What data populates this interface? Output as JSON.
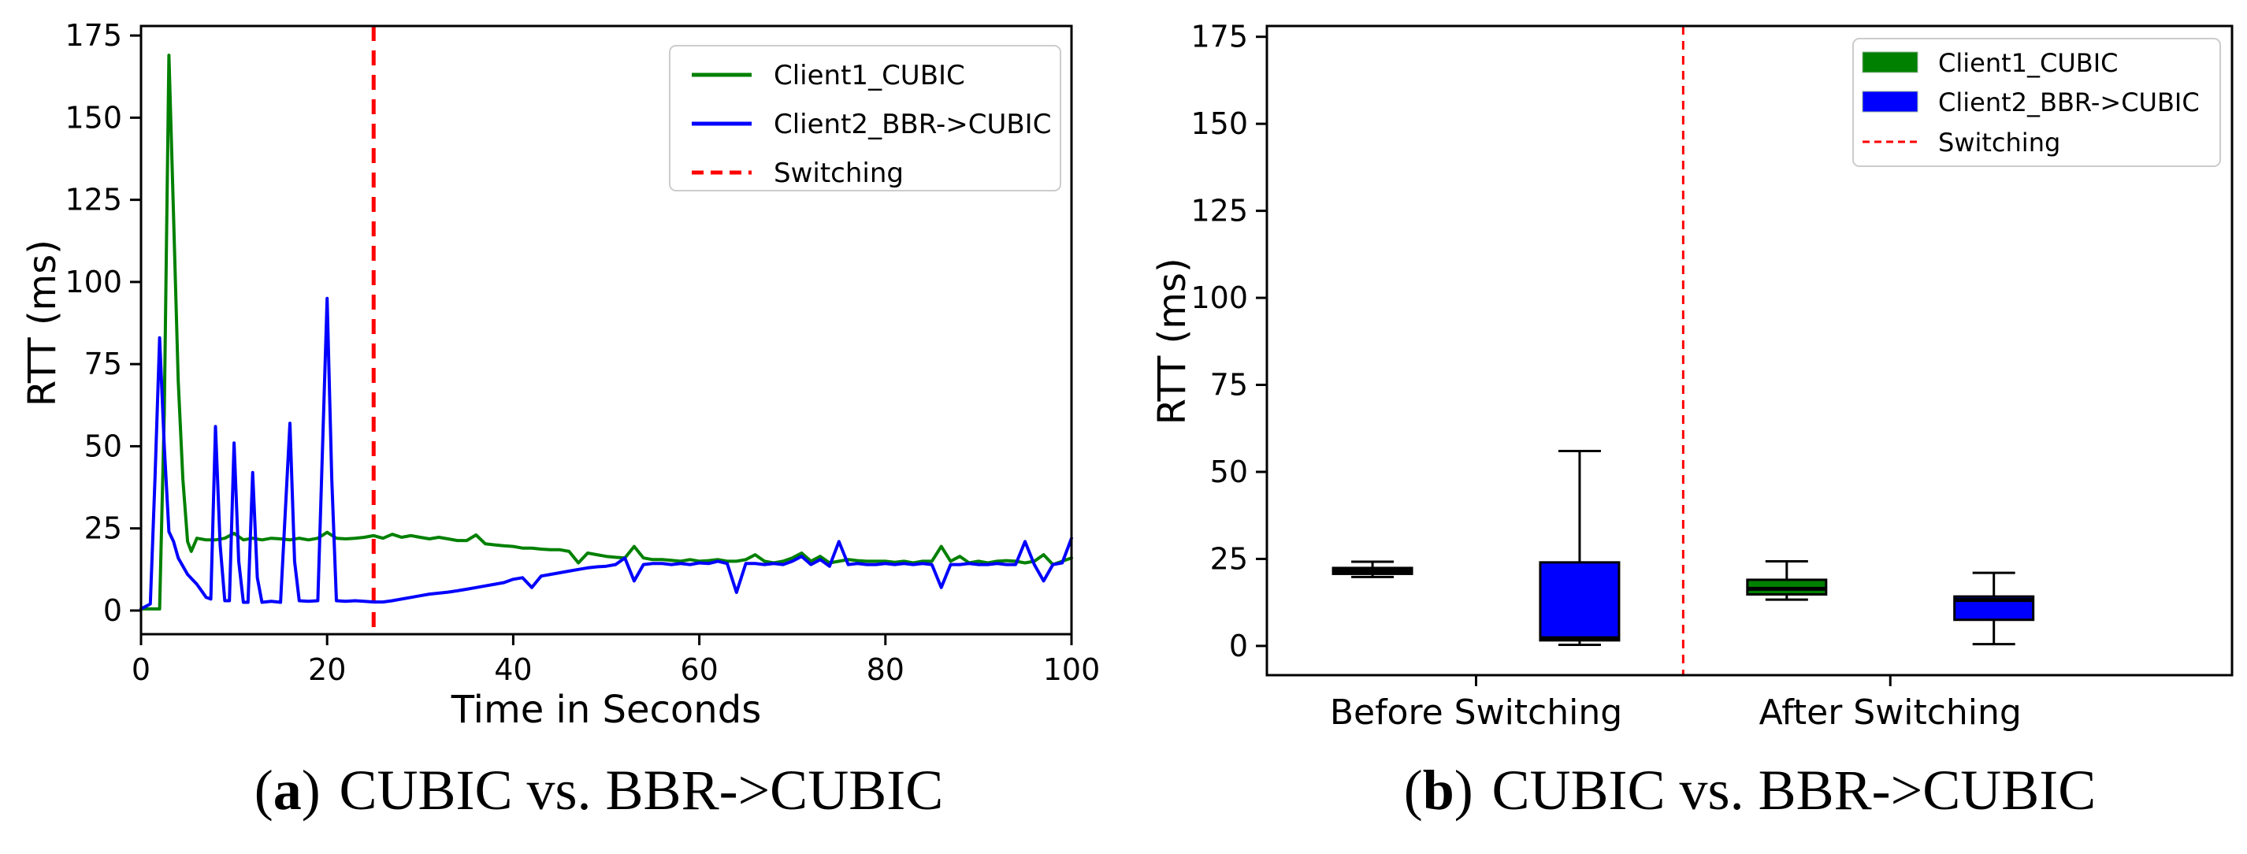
{
  "figure": {
    "background": "#ffffff",
    "accent_colors": {
      "cubic_green": "#008000",
      "bbr_blue": "#0000ff",
      "switch_red": "#ff0000"
    }
  },
  "captions": {
    "a": {
      "prefix": "(",
      "letter": "a",
      "suffix": ")",
      "text": "CUBIC vs. BBR->CUBIC"
    },
    "b": {
      "prefix": "(",
      "letter": "b",
      "suffix": ")",
      "text": "CUBIC vs. BBR->CUBIC"
    }
  },
  "chart_data": [
    {
      "id": "a",
      "type": "line",
      "title": "",
      "xlabel": "Time in Seconds",
      "ylabel": "RTT (ms)",
      "xlim": [
        0,
        100
      ],
      "ylim": [
        -7.2,
        177.9
      ],
      "xticks": [
        0,
        20,
        40,
        60,
        80,
        100
      ],
      "yticks": [
        0,
        25,
        50,
        75,
        100,
        125,
        150,
        175
      ],
      "grid": false,
      "legend_position": "upper right",
      "legend": [
        {
          "label": "Client1_CUBIC",
          "color": "#008000",
          "marker": "line"
        },
        {
          "label": "Client2_BBR->CUBIC",
          "color": "#0000ff",
          "marker": "line"
        },
        {
          "label": "Switching",
          "color": "#ff0000",
          "marker": "dashed"
        }
      ],
      "switching_x": 25,
      "series": [
        {
          "name": "Client1_CUBIC",
          "color": "#008000",
          "points": [
            [
              0,
              0.5
            ],
            [
              1,
              0.5
            ],
            [
              2,
              0.5
            ],
            [
              2.5,
              60
            ],
            [
              3,
              169
            ],
            [
              3.5,
              120
            ],
            [
              4,
              70
            ],
            [
              4.5,
              40
            ],
            [
              5,
              21
            ],
            [
              5.4,
              18
            ],
            [
              6,
              22
            ],
            [
              7,
              21.5
            ],
            [
              8,
              21.5
            ],
            [
              9,
              22
            ],
            [
              10,
              23.5
            ],
            [
              11,
              21.5
            ],
            [
              12,
              22
            ],
            [
              13,
              21.5
            ],
            [
              14,
              22
            ],
            [
              15,
              21.8
            ],
            [
              16,
              21.5
            ],
            [
              17,
              22
            ],
            [
              18,
              21.5
            ],
            [
              19,
              22
            ],
            [
              20,
              23.8
            ],
            [
              21,
              22
            ],
            [
              22,
              21.8
            ],
            [
              23,
              22
            ],
            [
              24,
              22.3
            ],
            [
              25,
              22.8
            ],
            [
              26,
              22
            ],
            [
              27,
              23.2
            ],
            [
              28,
              22.3
            ],
            [
              29,
              22.8
            ],
            [
              30,
              22.3
            ],
            [
              31,
              21.8
            ],
            [
              32,
              22.3
            ],
            [
              33,
              21.8
            ],
            [
              34,
              21.3
            ],
            [
              35,
              21.3
            ],
            [
              36,
              23
            ],
            [
              37,
              20.3
            ],
            [
              38,
              20
            ],
            [
              39,
              19.7
            ],
            [
              40,
              19.5
            ],
            [
              41,
              19
            ],
            [
              42,
              19
            ],
            [
              43,
              18.7
            ],
            [
              44,
              18.5
            ],
            [
              45,
              18.5
            ],
            [
              46,
              18
            ],
            [
              47,
              14.5
            ],
            [
              48,
              17.5
            ],
            [
              49,
              17
            ],
            [
              50,
              16.5
            ],
            [
              51,
              16.2
            ],
            [
              52,
              16
            ],
            [
              53,
              19.5
            ],
            [
              54,
              16
            ],
            [
              55,
              15.5
            ],
            [
              56,
              15.5
            ],
            [
              57,
              15.3
            ],
            [
              58,
              15
            ],
            [
              59,
              15.5
            ],
            [
              60,
              15
            ],
            [
              61,
              15.2
            ],
            [
              62,
              15.5
            ],
            [
              63,
              15
            ],
            [
              64,
              15
            ],
            [
              65,
              15.5
            ],
            [
              66,
              17
            ],
            [
              67,
              15
            ],
            [
              68,
              14.5
            ],
            [
              69,
              15
            ],
            [
              70,
              16
            ],
            [
              71,
              17.5
            ],
            [
              72,
              15
            ],
            [
              73,
              16.5
            ],
            [
              74,
              14.5
            ],
            [
              75,
              15
            ],
            [
              76,
              15.5
            ],
            [
              77,
              15.2
            ],
            [
              78,
              15
            ],
            [
              79,
              15
            ],
            [
              80,
              15
            ],
            [
              81,
              14.7
            ],
            [
              82,
              15
            ],
            [
              83,
              14.5
            ],
            [
              84,
              15
            ],
            [
              85,
              15
            ],
            [
              86,
              19.5
            ],
            [
              87,
              15
            ],
            [
              88,
              16.5
            ],
            [
              89,
              14.5
            ],
            [
              90,
              15
            ],
            [
              91,
              14.5
            ],
            [
              92,
              15
            ],
            [
              93,
              15.2
            ],
            [
              94,
              15
            ],
            [
              95,
              14.5
            ],
            [
              96,
              15
            ],
            [
              97,
              17
            ],
            [
              98,
              14
            ],
            [
              99,
              15
            ],
            [
              100,
              16
            ]
          ]
        },
        {
          "name": "Client2_BBR->CUBIC",
          "color": "#0000ff",
          "points": [
            [
              0,
              0.5
            ],
            [
              1,
              2
            ],
            [
              1.5,
              40
            ],
            [
              2,
              83
            ],
            [
              2.5,
              50
            ],
            [
              3,
              24
            ],
            [
              3.5,
              21
            ],
            [
              4,
              16
            ],
            [
              5,
              11
            ],
            [
              6,
              8
            ],
            [
              7,
              4
            ],
            [
              7.5,
              3.5
            ],
            [
              8,
              56
            ],
            [
              8.5,
              20
            ],
            [
              9,
              3
            ],
            [
              9.5,
              3
            ],
            [
              10,
              51
            ],
            [
              10.5,
              15
            ],
            [
              11,
              2.5
            ],
            [
              11.5,
              2.5
            ],
            [
              12,
              42
            ],
            [
              12.5,
              10
            ],
            [
              13,
              2.5
            ],
            [
              14,
              2.8
            ],
            [
              15,
              2.5
            ],
            [
              16,
              57
            ],
            [
              16.5,
              15
            ],
            [
              17,
              3
            ],
            [
              18,
              2.8
            ],
            [
              19,
              3
            ],
            [
              20,
              95
            ],
            [
              20.5,
              40
            ],
            [
              21,
              3
            ],
            [
              22,
              2.8
            ],
            [
              23,
              3
            ],
            [
              24,
              2.8
            ],
            [
              25,
              2.6
            ],
            [
              26,
              2.6
            ],
            [
              27,
              3
            ],
            [
              28,
              3.5
            ],
            [
              29,
              4
            ],
            [
              30,
              4.5
            ],
            [
              31,
              5
            ],
            [
              32,
              5.3
            ],
            [
              33,
              5.6
            ],
            [
              34,
              6
            ],
            [
              35,
              6.5
            ],
            [
              36,
              7
            ],
            [
              37,
              7.5
            ],
            [
              38,
              8
            ],
            [
              39,
              8.5
            ],
            [
              40,
              9.5
            ],
            [
              41,
              10
            ],
            [
              42,
              7
            ],
            [
              43,
              10.5
            ],
            [
              44,
              11
            ],
            [
              45,
              11.5
            ],
            [
              46,
              12
            ],
            [
              47,
              12.5
            ],
            [
              48,
              13
            ],
            [
              49,
              13.3
            ],
            [
              50,
              13.5
            ],
            [
              51,
              14
            ],
            [
              52,
              16
            ],
            [
              53,
              9
            ],
            [
              54,
              14
            ],
            [
              55,
              14.3
            ],
            [
              56,
              14.3
            ],
            [
              57,
              14
            ],
            [
              58,
              14.3
            ],
            [
              59,
              14
            ],
            [
              60,
              14.5
            ],
            [
              61,
              14.3
            ],
            [
              62,
              15
            ],
            [
              63,
              14.3
            ],
            [
              64,
              5.5
            ],
            [
              65,
              14.3
            ],
            [
              66,
              14.3
            ],
            [
              67,
              14
            ],
            [
              68,
              14.3
            ],
            [
              69,
              14
            ],
            [
              70,
              15
            ],
            [
              71,
              16.5
            ],
            [
              72,
              14
            ],
            [
              73,
              15.5
            ],
            [
              74,
              13.5
            ],
            [
              75,
              21
            ],
            [
              76,
              14
            ],
            [
              77,
              14.3
            ],
            [
              78,
              14
            ],
            [
              79,
              14
            ],
            [
              80,
              14.3
            ],
            [
              81,
              14
            ],
            [
              82,
              14.3
            ],
            [
              83,
              14
            ],
            [
              84,
              14.3
            ],
            [
              85,
              14
            ],
            [
              86,
              7
            ],
            [
              87,
              14
            ],
            [
              88,
              14
            ],
            [
              89,
              14.3
            ],
            [
              90,
              14
            ],
            [
              91,
              14
            ],
            [
              92,
              14.3
            ],
            [
              93,
              14
            ],
            [
              94,
              14
            ],
            [
              95,
              21
            ],
            [
              96,
              14
            ],
            [
              97,
              9
            ],
            [
              98,
              14
            ],
            [
              99,
              14.5
            ],
            [
              100,
              22
            ]
          ]
        }
      ]
    },
    {
      "id": "b",
      "type": "boxplot",
      "title": "",
      "xlabel": "",
      "ylabel": "RTT (ms)",
      "ylim": [
        -8.4,
        178.1
      ],
      "yticks": [
        0,
        25,
        50,
        75,
        100,
        125,
        150,
        175
      ],
      "pos_lim": [
        0.49,
        5.15
      ],
      "grid": false,
      "legend_position": "upper right",
      "legend": [
        {
          "label": "Client1_CUBIC",
          "color": "#008000",
          "marker": "patch"
        },
        {
          "label": "Client2_BBR->CUBIC",
          "color": "#0000ff",
          "marker": "patch"
        },
        {
          "label": "Switching",
          "color": "#ff0000",
          "marker": "dashed"
        }
      ],
      "switching_pos": 2.5,
      "group_ticks": [
        {
          "label": "Before Switching",
          "pos": 1.5
        },
        {
          "label": "After Switching",
          "pos": 3.5
        }
      ],
      "boxes": [
        {
          "name": "Client1_CUBIC",
          "group": "Before Switching",
          "pos": 1,
          "color": "#008000",
          "whisker_low": 19.8,
          "q1": 20.7,
          "median": 21.5,
          "q3": 22.4,
          "whisker_high": 24.2
        },
        {
          "name": "Client2_BBR->CUBIC",
          "group": "Before Switching",
          "pos": 2,
          "color": "#0000ff",
          "whisker_low": 0.3,
          "q1": 1.6,
          "median": 2.2,
          "q3": 24.0,
          "whisker_high": 56.0
        },
        {
          "name": "Client1_CUBIC",
          "group": "After Switching",
          "pos": 3,
          "color": "#008000",
          "whisker_low": 13.3,
          "q1": 14.8,
          "median": 16.4,
          "q3": 19.0,
          "whisker_high": 24.3
        },
        {
          "name": "Client2_BBR->CUBIC",
          "group": "After Switching",
          "pos": 4,
          "color": "#0000ff",
          "whisker_low": 0.5,
          "q1": 7.5,
          "median": 13.2,
          "q3": 14.2,
          "whisker_high": 21.0
        }
      ]
    }
  ]
}
